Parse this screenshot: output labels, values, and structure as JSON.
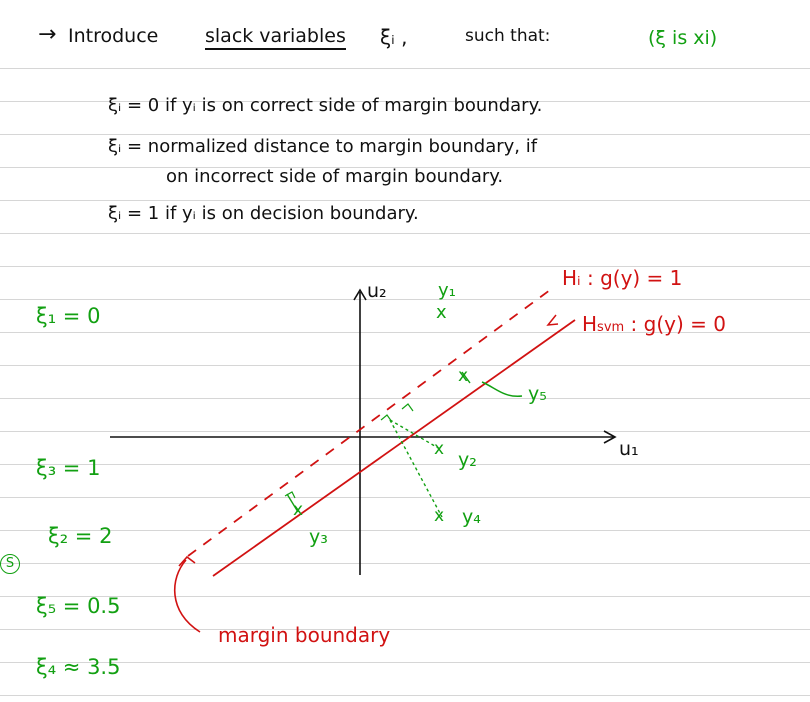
{
  "colors": {
    "ink": "#111111",
    "green": "#12a012",
    "red": "#d11212",
    "rule": "#d6d6d6"
  },
  "header": {
    "arrow": "→",
    "intro": "Introduce",
    "slack": "slack variables",
    "xi_i": "ξᵢ ,",
    "such_that": "such that:",
    "note": "(ξ is xi)"
  },
  "definitions": [
    "ξᵢ = 0 if yᵢ is on correct side of margin boundary.",
    "ξᵢ = normalized distance to margin boundary, if",
    "on incorrect side of margin boundary.",
    "ξᵢ = 1 if yᵢ is on decision boundary."
  ],
  "values": {
    "xi1": "ξ₁ = 0",
    "xi3": "ξ₃ = 1",
    "xi2": "ξ₂ = 2",
    "xi5": "ξ₅ = 0.5",
    "xi4": "ξ₄ ≈ 3.5"
  },
  "s_mark": "S",
  "diagram": {
    "axis_x_label": "u₁",
    "axis_y_label": "u₂",
    "margin_label": "Hᵢ : g(y) = 1",
    "hsvm_label": "H",
    "hsvm_sub": "svm",
    "hsvm_rest": ": g(y) = 0",
    "points": {
      "y1": "y₁",
      "y2": "y₂",
      "y3": "y₃",
      "y4": "y₄",
      "y5": "y₅"
    },
    "x_mark": "x",
    "caption": "margin boundary"
  }
}
